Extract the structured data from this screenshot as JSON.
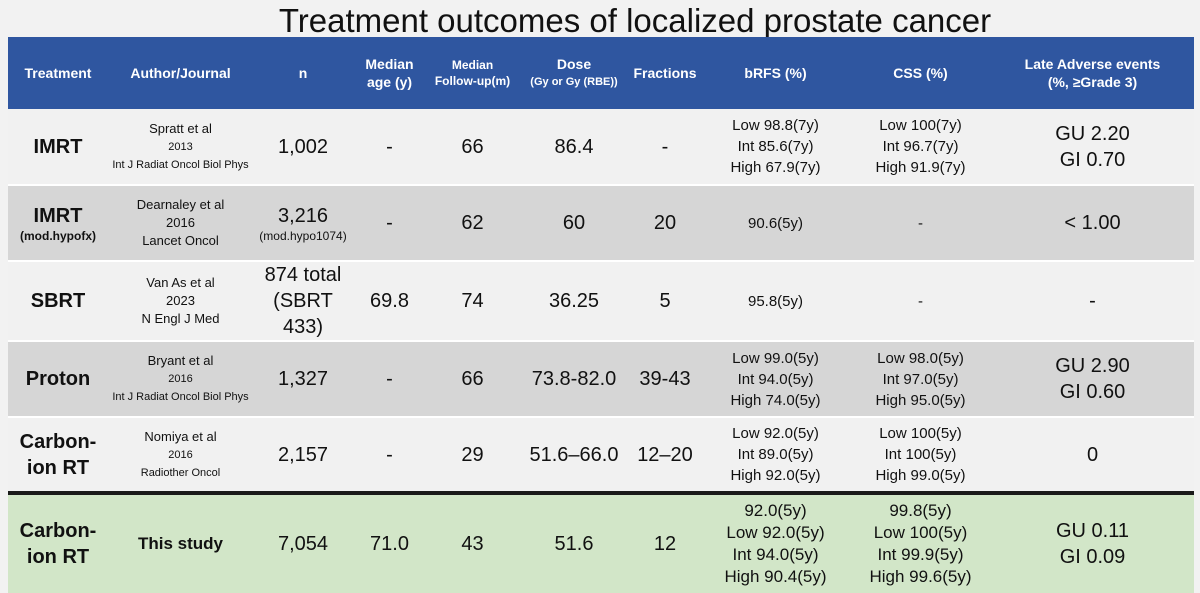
{
  "title": "Treatment outcomes of localized prostate cancer",
  "headers": {
    "treatment": "Treatment",
    "author": "Author/Journal",
    "n": "n",
    "median_age_1": "Median",
    "median_age_2": "age (y)",
    "median_fu_1": "Median",
    "median_fu_2": "Follow-up(m)",
    "dose_1": "Dose",
    "dose_2": "(Gy or Gy (RBE))",
    "fractions": "Fractions",
    "brfs": "bRFS (%)",
    "css": "CSS (%)",
    "late_1": "Late Adverse events",
    "late_2": "(%, ≥Grade 3)"
  },
  "rows": [
    {
      "treatment": "IMRT",
      "treatment_sub": "",
      "author": "Spratt et al",
      "year": "2013",
      "journal": "Int J Radiat Oncol Biol Phys",
      "n": "1,002",
      "n_sub": "",
      "age": "-",
      "followup": "66",
      "dose": "86.4",
      "fractions": "-",
      "brfs": [
        "Low 98.8(7y)",
        "Int 85.6(7y)",
        "High 67.9(7y)"
      ],
      "css": [
        "Low 100(7y)",
        "Int 96.7(7y)",
        "High 91.9(7y)"
      ],
      "late": [
        "GU 2.20",
        "GI 0.70"
      ]
    },
    {
      "treatment": "IMRT",
      "treatment_sub": "(mod.hypofx)",
      "author": "Dearnaley et al",
      "year": "2016",
      "journal": "Lancet Oncol",
      "n": "3,216",
      "n_sub": "(mod.hypo1074)",
      "age": "-",
      "followup": "62",
      "dose": "60",
      "fractions": "20",
      "brfs": [
        "90.6(5y)"
      ],
      "css": [
        "-"
      ],
      "late": [
        "< 1.00"
      ]
    },
    {
      "treatment": "SBRT",
      "treatment_sub": "",
      "author": "Van As et al",
      "year": "2023",
      "journal": "N Engl J Med",
      "n": "874 total",
      "n_sub": "(SBRT 433)",
      "age": "69.8",
      "followup": "74",
      "dose": "36.25",
      "fractions": "5",
      "brfs": [
        "95.8(5y)"
      ],
      "css": [
        "-"
      ],
      "late": [
        "-"
      ]
    },
    {
      "treatment": "Proton",
      "treatment_sub": "",
      "author": "Bryant et al",
      "year": "2016",
      "journal": "Int J Radiat Oncol Biol Phys",
      "n": "1,327",
      "n_sub": "",
      "age": "-",
      "followup": "66",
      "dose": "73.8-82.0",
      "fractions": "39-43",
      "brfs": [
        "Low 99.0(5y)",
        "Int 94.0(5y)",
        "High 74.0(5y)"
      ],
      "css": [
        "Low 98.0(5y)",
        "Int 97.0(5y)",
        "High 95.0(5y)"
      ],
      "late": [
        "GU 2.90",
        "GI 0.60"
      ]
    },
    {
      "treatment": "Carbon-",
      "treatment2": "ion RT",
      "author": "Nomiya et al",
      "year": "2016",
      "journal": "Radiother Oncol",
      "n": "2,157",
      "n_sub": "",
      "age": "-",
      "followup": "29",
      "dose": "51.6–66.0",
      "fractions": "12–20",
      "brfs": [
        "Low 92.0(5y)",
        "Int 89.0(5y)",
        "High 92.0(5y)"
      ],
      "css": [
        "Low 100(5y)",
        "Int 100(5y)",
        "High 99.0(5y)"
      ],
      "late": [
        "0"
      ]
    },
    {
      "treatment": "Carbon-",
      "treatment2": "ion RT",
      "author": "This study",
      "n": "7,054",
      "age": "71.0",
      "followup": "43",
      "dose": "51.6",
      "fractions": "12",
      "brfs": [
        "92.0(5y)",
        "Low 92.0(5y)",
        "Int 94.0(5y)",
        "High 90.4(5y)"
      ],
      "css": [
        "99.8(5y)",
        "Low 100(5y)",
        "Int 99.9(5y)",
        "High 99.6(5y)"
      ],
      "late": [
        "GU 0.11",
        "GI 0.09"
      ]
    }
  ]
}
